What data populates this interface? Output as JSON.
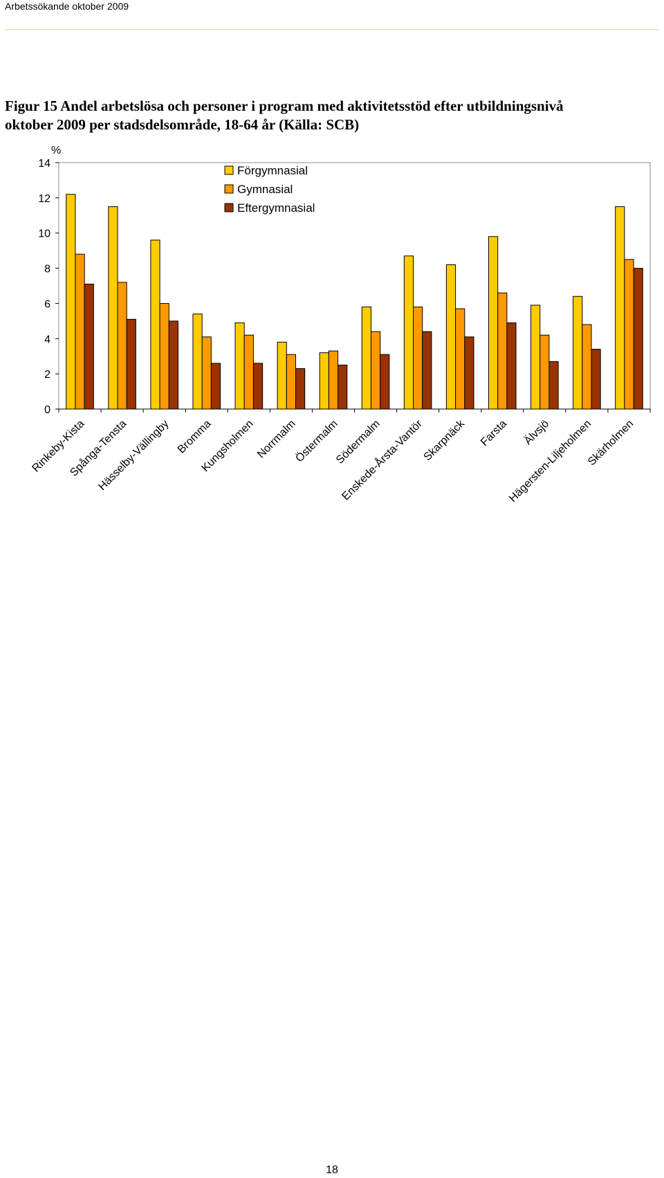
{
  "header": {
    "running_title": "Arbetssökande oktober 2009"
  },
  "figure": {
    "title_line1": "Figur 15 Andel arbetslösa och personer i program med aktivitetsstöd efter utbildningsnivå",
    "title_line2": "oktober 2009 per stadsdelsområde, 18-64 år (Källa: SCB)"
  },
  "chart_data": {
    "type": "bar",
    "ylabel": "%",
    "ylim": [
      0,
      14
    ],
    "yticks": [
      0,
      2,
      4,
      6,
      8,
      10,
      12,
      14
    ],
    "grid": false,
    "legend_position": "top-center",
    "categories": [
      "Rinkeby-Kista",
      "Spånga-Tensta",
      "Hässelby-Vällingby",
      "Bromma",
      "Kungsholmen",
      "Norrmalm",
      "Östermalm",
      "Södermalm",
      "Enskede-Årsta-Vantör",
      "Skarpnäck",
      "Farsta",
      "Älvsjö",
      "Hägersten-Liljeholmen",
      "Skärholmen"
    ],
    "series": [
      {
        "name": "Förgymnasial",
        "color": "#FFCC00",
        "values": [
          12.2,
          11.5,
          9.6,
          5.4,
          4.9,
          3.8,
          3.2,
          5.8,
          8.7,
          8.2,
          9.8,
          5.9,
          6.4,
          11.5
        ]
      },
      {
        "name": "Gymnasial",
        "color": "#FF9900",
        "values": [
          8.8,
          7.2,
          6.0,
          4.1,
          4.2,
          3.1,
          3.3,
          4.4,
          5.8,
          5.7,
          6.6,
          4.2,
          4.8,
          8.5
        ]
      },
      {
        "name": "Eftergymnasial",
        "color": "#993300",
        "values": [
          7.1,
          5.1,
          5.0,
          2.6,
          2.6,
          2.3,
          2.5,
          3.1,
          4.4,
          4.1,
          4.9,
          2.7,
          3.4,
          8.0
        ]
      }
    ]
  },
  "footer": {
    "page_number": "18"
  }
}
